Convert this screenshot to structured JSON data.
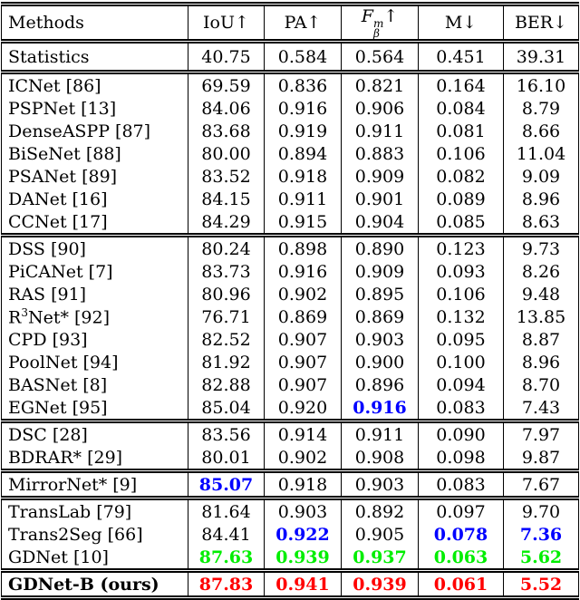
{
  "table": {
    "columns": [
      {
        "key": "methods",
        "label": "Methods"
      },
      {
        "key": "iou",
        "label": "IoU↑"
      },
      {
        "key": "pa",
        "label": "PA↑"
      },
      {
        "key": "fbeta",
        "base": "F",
        "sup": "m",
        "sub": "β",
        "arrow": "↑"
      },
      {
        "key": "mae",
        "label": "M↓"
      },
      {
        "key": "ber",
        "label": "BER↓"
      }
    ],
    "value_colors": {
      "rank1": "#ff0000",
      "rank2": "#00ee00",
      "rank3": "#0000ff"
    },
    "groups": [
      {
        "name": "statistics",
        "rows": [
          {
            "method": "Statistics",
            "stats": true,
            "values": [
              "40.75",
              "0.584",
              "0.564",
              "0.451",
              "39.31"
            ]
          }
        ]
      },
      {
        "name": "semantic-segmentation-methods",
        "rows": [
          {
            "method": "ICNet [86]",
            "values": [
              "69.59",
              "0.836",
              "0.821",
              "0.164",
              "16.10"
            ]
          },
          {
            "method": "PSPNet [13]",
            "values": [
              "84.06",
              "0.916",
              "0.906",
              "0.084",
              "8.79"
            ]
          },
          {
            "method": "DenseASPP [87]",
            "values": [
              "83.68",
              "0.919",
              "0.911",
              "0.081",
              "8.66"
            ]
          },
          {
            "method": "BiSeNet [88]",
            "values": [
              "80.00",
              "0.894",
              "0.883",
              "0.106",
              "11.04"
            ]
          },
          {
            "method": "PSANet [89]",
            "values": [
              "83.52",
              "0.918",
              "0.909",
              "0.082",
              "9.09"
            ]
          },
          {
            "method": "DANet [16]",
            "values": [
              "84.15",
              "0.911",
              "0.901",
              "0.089",
              "8.96"
            ]
          },
          {
            "method": "CCNet [17]",
            "values": [
              "84.29",
              "0.915",
              "0.904",
              "0.085",
              "8.63"
            ]
          }
        ]
      },
      {
        "name": "saliency-detection-methods",
        "rows": [
          {
            "method": "DSS [90]",
            "values": [
              "80.24",
              "0.898",
              "0.890",
              "0.123",
              "9.73"
            ]
          },
          {
            "method": "PiCANet [7]",
            "values": [
              "83.73",
              "0.916",
              "0.909",
              "0.093",
              "8.26"
            ]
          },
          {
            "method": "RAS [91]",
            "values": [
              "80.96",
              "0.902",
              "0.895",
              "0.106",
              "9.48"
            ]
          },
          {
            "method": "R3Net* [92]",
            "method_parts": [
              {
                "t": "R"
              },
              {
                "sup": "3"
              },
              {
                "t": "Net* [92]"
              }
            ],
            "values": [
              "76.71",
              "0.869",
              "0.869",
              "0.132",
              "13.85"
            ]
          },
          {
            "method": "CPD [93]",
            "values": [
              "82.52",
              "0.907",
              "0.903",
              "0.095",
              "8.87"
            ]
          },
          {
            "method": "PoolNet [94]",
            "values": [
              "81.92",
              "0.907",
              "0.900",
              "0.100",
              "8.96"
            ]
          },
          {
            "method": "BASNet [8]",
            "values": [
              "82.88",
              "0.907",
              "0.896",
              "0.094",
              "8.70"
            ]
          },
          {
            "method": "EGNet [95]",
            "values": [
              "85.04",
              "0.920",
              "0.916",
              "0.083",
              "7.43"
            ],
            "styles": [
              null,
              null,
              "rank3",
              null,
              null
            ]
          }
        ]
      },
      {
        "name": "shadow-detection-methods",
        "rows": [
          {
            "method": "DSC [28]",
            "values": [
              "83.56",
              "0.914",
              "0.911",
              "0.090",
              "7.97"
            ]
          },
          {
            "method": "BDRAR* [29]",
            "values": [
              "80.01",
              "0.902",
              "0.908",
              "0.098",
              "9.87"
            ]
          }
        ]
      },
      {
        "name": "mirror-detection-methods",
        "rows": [
          {
            "method": "MirrorNet* [9]",
            "values": [
              "85.07",
              "0.918",
              "0.903",
              "0.083",
              "7.67"
            ],
            "styles": [
              "rank3",
              null,
              null,
              null,
              null
            ]
          }
        ]
      },
      {
        "name": "transparency-glass-detection-methods",
        "rows": [
          {
            "method": "TransLab [79]",
            "values": [
              "81.64",
              "0.903",
              "0.892",
              "0.097",
              "9.70"
            ]
          },
          {
            "method": "Trans2Seg [66]",
            "values": [
              "84.41",
              "0.922",
              "0.905",
              "0.078",
              "7.36"
            ],
            "styles": [
              null,
              "rank3",
              null,
              "rank3",
              "rank3"
            ]
          },
          {
            "method": "GDNet [10]",
            "values": [
              "87.63",
              "0.939",
              "0.937",
              "0.063",
              "5.62"
            ],
            "styles": [
              "rank2",
              "rank2",
              "rank2",
              "rank2",
              "rank2"
            ]
          }
        ]
      },
      {
        "name": "ours",
        "rows": [
          {
            "method": "GDNet-B (ours)",
            "bold": true,
            "values": [
              "87.83",
              "0.941",
              "0.939",
              "0.061",
              "5.52"
            ],
            "styles": [
              "rank1",
              "rank1",
              "rank1",
              "rank1",
              "rank1"
            ]
          }
        ]
      }
    ]
  }
}
